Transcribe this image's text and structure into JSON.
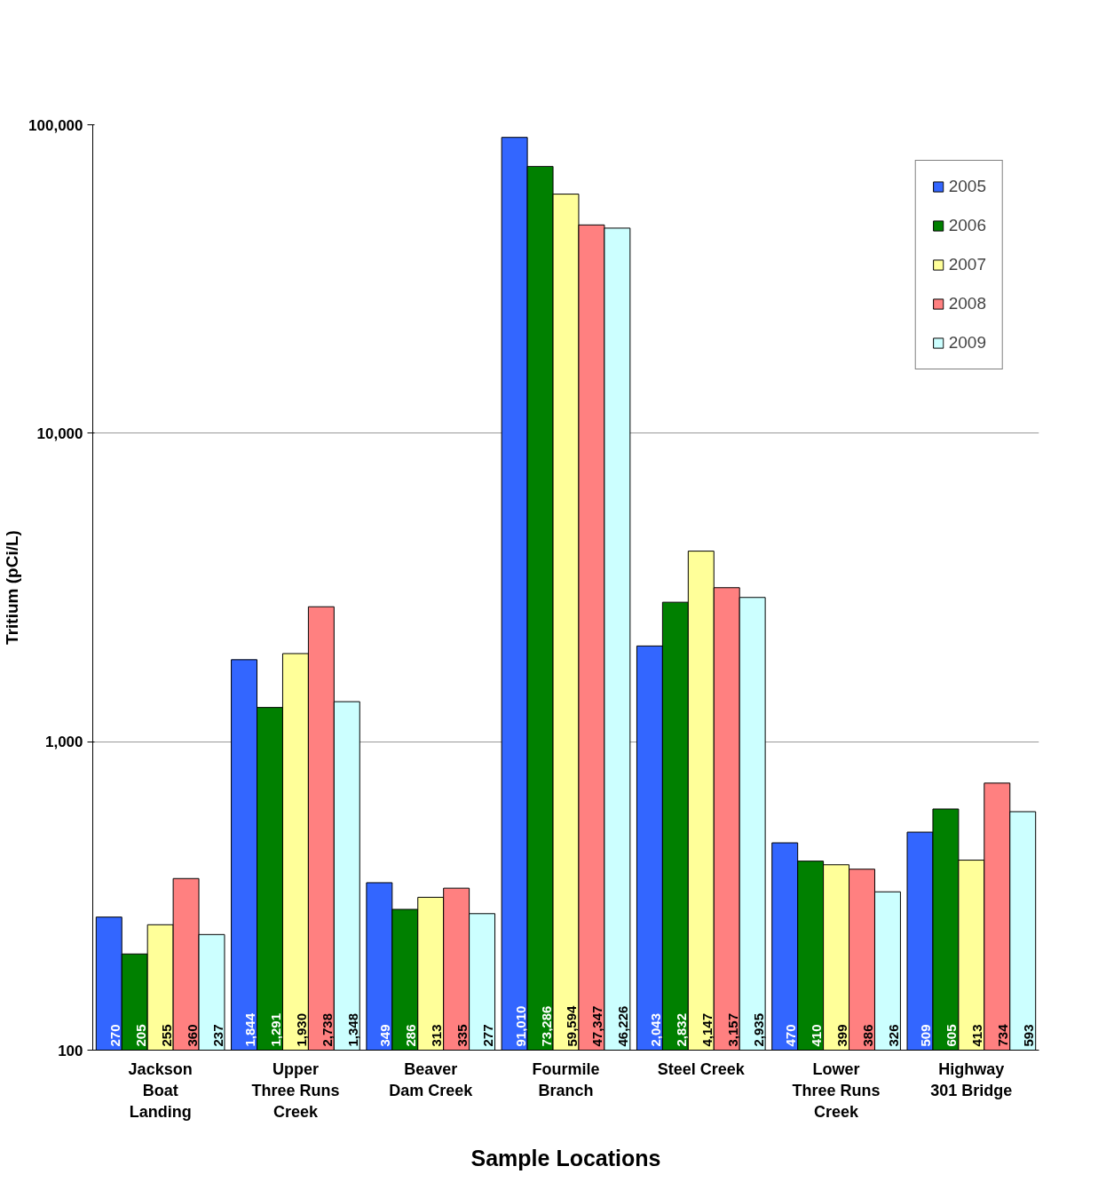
{
  "chart_data": {
    "type": "bar",
    "xlabel": "Sample Locations",
    "ylabel": "Tritium (pCi/L)",
    "categories": [
      "Jackson\nBoat\nLanding",
      "Upper\nThree Runs\nCreek",
      "Beaver\nDam Creek",
      "Fourmile\nBranch",
      "Steel Creek",
      "Lower\nThree Runs\nCreek",
      "Highway\n301 Bridge"
    ],
    "series": [
      {
        "name": "2005",
        "color": "#3366ff",
        "values": [
          270,
          1844,
          349,
          91010,
          2043,
          470,
          509
        ],
        "value_labels": [
          "270",
          "1,844",
          "349",
          "91,010",
          "2,043",
          "470",
          "509"
        ]
      },
      {
        "name": "2006",
        "color": "#008000",
        "values": [
          205,
          1291,
          286,
          73286,
          2832,
          410,
          605
        ],
        "value_labels": [
          "205",
          "1,291",
          "286",
          "73,286",
          "2,832",
          "410",
          "605"
        ]
      },
      {
        "name": "2007",
        "color": "#ffff99",
        "values": [
          255,
          1930,
          313,
          59594,
          4147,
          399,
          413
        ],
        "value_labels": [
          "255",
          "1,930",
          "313",
          "59,594",
          "4,147",
          "399",
          "413"
        ]
      },
      {
        "name": "2008",
        "color": "#ff8080",
        "values": [
          360,
          2738,
          335,
          47347,
          3157,
          386,
          734
        ],
        "value_labels": [
          "360",
          "2,738",
          "335",
          "47,347",
          "3,157",
          "386",
          "734"
        ]
      },
      {
        "name": "2009",
        "color": "#ccffff",
        "values": [
          237,
          1348,
          277,
          46226,
          2935,
          326,
          593
        ],
        "value_labels": [
          "237",
          "1,348",
          "277",
          "46,226",
          "2,935",
          "326",
          "593"
        ]
      }
    ],
    "log": true,
    "ylim": [
      100,
      100000
    ],
    "yticks": [
      100,
      {
        "value": 1000,
        "label": "1,000"
      },
      {
        "value": 10000,
        "label": "10,000"
      },
      {
        "value": 100000,
        "label": "100,000"
      }
    ],
    "grid": "y",
    "legend": "top right"
  }
}
